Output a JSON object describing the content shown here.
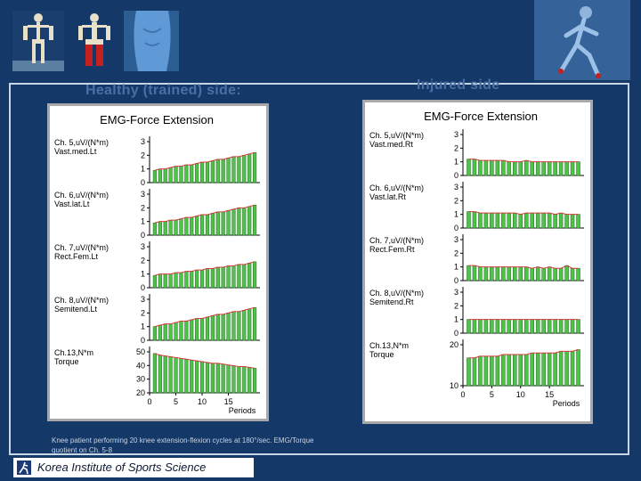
{
  "left_heading": "Healthy (trained) side:",
  "right_heading": "Injured side",
  "caption": "Knee patient performing 20 knee extension-flexion cycles at 180°/sec. EMG/Torque quotient on Ch. 5-8",
  "footer_text": "Korea Institute of Sports Science",
  "colors": {
    "bar": "#4fc24a",
    "bar_edge": "#1f6e1f",
    "trend": "#d23c3c",
    "axis": "#000000"
  },
  "chart_data": [
    {
      "type": "bar",
      "title": "EMG-Force Extension",
      "xlabel": "Periods",
      "x": [
        1,
        2,
        3,
        4,
        5,
        6,
        7,
        8,
        9,
        10,
        11,
        12,
        13,
        14,
        15,
        16,
        17,
        18,
        19,
        20
      ],
      "xticks": [
        0,
        5,
        10,
        15
      ],
      "rows": [
        {
          "label1": "Ch. 5,uV/(N*m)",
          "label2": "Vast.med.Lt",
          "ylim": [
            0,
            3
          ],
          "yticks": [
            "0",
            "1",
            "2",
            "3"
          ],
          "values": [
            0.9,
            1.0,
            1.0,
            1.1,
            1.2,
            1.2,
            1.3,
            1.3,
            1.4,
            1.5,
            1.5,
            1.6,
            1.7,
            1.7,
            1.8,
            1.9,
            1.9,
            2.0,
            2.1,
            2.2
          ]
        },
        {
          "label1": "Ch. 6,uV/(N*m)",
          "label2": "Vast.lat.Lt",
          "ylim": [
            0,
            3
          ],
          "yticks": [
            "0",
            "1",
            "2",
            "3"
          ],
          "values": [
            0.9,
            1.0,
            1.0,
            1.1,
            1.1,
            1.2,
            1.3,
            1.3,
            1.4,
            1.5,
            1.5,
            1.6,
            1.7,
            1.7,
            1.8,
            1.9,
            2.0,
            2.0,
            2.1,
            2.2
          ]
        },
        {
          "label1": "Ch. 7,uV/(N*m)",
          "label2": "Rect.Fem.Lt",
          "ylim": [
            0,
            3
          ],
          "yticks": [
            "0",
            "1",
            "2",
            "3"
          ],
          "values": [
            0.9,
            1.0,
            1.0,
            1.0,
            1.1,
            1.1,
            1.2,
            1.2,
            1.3,
            1.3,
            1.4,
            1.4,
            1.5,
            1.5,
            1.6,
            1.6,
            1.7,
            1.7,
            1.8,
            1.9
          ]
        },
        {
          "label1": "Ch. 8,uV/(N*m)",
          "label2": "Semitend.Lt",
          "ylim": [
            0,
            3
          ],
          "yticks": [
            "0",
            "1",
            "2",
            "3"
          ],
          "values": [
            1.0,
            1.1,
            1.2,
            1.2,
            1.3,
            1.4,
            1.4,
            1.5,
            1.6,
            1.6,
            1.7,
            1.8,
            1.9,
            1.9,
            2.0,
            2.1,
            2.1,
            2.2,
            2.3,
            2.4
          ]
        },
        {
          "label1": "Ch.13,N*m",
          "label2": "Torque",
          "ylim": [
            0,
            50
          ],
          "yticks": [
            "20",
            "30",
            "40",
            "50"
          ],
          "values": [
            48,
            46,
            45,
            44,
            43,
            42,
            41,
            40,
            39,
            38,
            37,
            36,
            36,
            35,
            34,
            33,
            32,
            32,
            31,
            30
          ]
        }
      ]
    },
    {
      "type": "bar",
      "title": "EMG-Force Extension",
      "xlabel": "Periods",
      "x": [
        1,
        2,
        3,
        4,
        5,
        6,
        7,
        8,
        9,
        10,
        11,
        12,
        13,
        14,
        15,
        16,
        17,
        18,
        19,
        20
      ],
      "xticks": [
        0,
        5,
        10,
        15
      ],
      "rows": [
        {
          "label1": "Ch. 5,uV/(N*m)",
          "label2": "Vast.med.Rt",
          "ylim": [
            0,
            3
          ],
          "yticks": [
            "0",
            "1",
            "2",
            "3"
          ],
          "values": [
            1.2,
            1.2,
            1.1,
            1.1,
            1.1,
            1.1,
            1.1,
            1.0,
            1.0,
            1.0,
            1.1,
            1.0,
            1.0,
            1.0,
            1.0,
            1.0,
            1.0,
            1.0,
            1.0,
            1.0
          ]
        },
        {
          "label1": "Ch. 6,uV/(N*m)",
          "label2": "Vast.lat.Rt",
          "ylim": [
            0,
            3
          ],
          "yticks": [
            "0",
            "1",
            "2",
            "3"
          ],
          "values": [
            1.2,
            1.2,
            1.1,
            1.1,
            1.1,
            1.1,
            1.1,
            1.1,
            1.1,
            1.0,
            1.1,
            1.1,
            1.1,
            1.1,
            1.1,
            1.0,
            1.1,
            1.0,
            1.0,
            1.0
          ]
        },
        {
          "label1": "Ch. 7,uV/(N*m)",
          "label2": "Rect.Fem.Rt",
          "ylim": [
            0,
            3
          ],
          "yticks": [
            "0",
            "1",
            "2",
            "3"
          ],
          "values": [
            1.1,
            1.1,
            1.0,
            1.0,
            1.0,
            1.0,
            1.0,
            1.0,
            1.0,
            1.0,
            1.0,
            0.9,
            1.0,
            0.9,
            1.0,
            0.9,
            0.9,
            1.1,
            0.9,
            0.9
          ]
        },
        {
          "label1": "Ch. 8,uV/(N*m)",
          "label2": "Semitend.Rt",
          "ylim": [
            0,
            3
          ],
          "yticks": [
            "0",
            "1",
            "2",
            "3"
          ],
          "values": [
            1.0,
            1.0,
            1.0,
            1.0,
            1.0,
            1.0,
            1.0,
            1.0,
            1.0,
            1.0,
            1.0,
            1.0,
            1.0,
            1.0,
            1.0,
            1.0,
            1.0,
            1.0,
            1.0,
            1.0
          ]
        },
        {
          "label1": "Ch.13,N*m",
          "label2": "Torque",
          "ylim": [
            0,
            25
          ],
          "yticks": [
            "10",
            "20"
          ],
          "values": [
            17,
            17,
            18,
            18,
            18,
            18,
            19,
            19,
            19,
            19,
            19,
            20,
            20,
            20,
            20,
            20,
            21,
            21,
            21,
            22
          ]
        }
      ]
    }
  ]
}
